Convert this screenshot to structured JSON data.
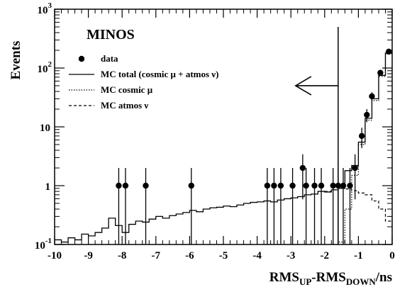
{
  "chart_data": {
    "type": "scatter",
    "experiment_label": "MINOS",
    "xlabel": {
      "main": "RMS",
      "sub1": "UP",
      "mid": "-RMS",
      "sub2": "DOWN",
      "tail": "/ns"
    },
    "ylabel": "Events",
    "xlim": [
      -10,
      0
    ],
    "ylim": [
      0.1,
      1000
    ],
    "yscale": "log",
    "x_ticks": [
      -10,
      -9,
      -8,
      -7,
      -6,
      -5,
      -4,
      -3,
      -2,
      -1,
      0
    ],
    "y_ticks": [
      {
        "value": 0.1,
        "base": "10",
        "exp": "-1"
      },
      {
        "value": 1,
        "base": "1",
        "exp": ""
      },
      {
        "value": 10,
        "base": "10",
        "exp": ""
      },
      {
        "value": 100,
        "base": "10",
        "exp": "2"
      },
      {
        "value": 1000,
        "base": "10",
        "exp": "3"
      }
    ],
    "grid": false,
    "legend_position": "top-left",
    "legend": [
      {
        "key": "data",
        "label": "data",
        "style": "marker"
      },
      {
        "key": "mc_total",
        "label": "MC total (cosmic μ + atmos ν)",
        "style": "solid"
      },
      {
        "key": "mc_cosmic",
        "label": "MC cosmic μ",
        "style": "dotted"
      },
      {
        "key": "mc_atmos",
        "label": "MC atmos ν",
        "style": "dashed"
      }
    ],
    "cut_line_x": -1.6,
    "cut_arrow": "left",
    "data_points": [
      {
        "x": -8.1,
        "y": 1
      },
      {
        "x": -7.9,
        "y": 1
      },
      {
        "x": -7.3,
        "y": 1
      },
      {
        "x": -5.95,
        "y": 1
      },
      {
        "x": -3.7,
        "y": 1
      },
      {
        "x": -3.5,
        "y": 1
      },
      {
        "x": -3.3,
        "y": 1
      },
      {
        "x": -2.95,
        "y": 1
      },
      {
        "x": -2.65,
        "y": 2
      },
      {
        "x": -2.55,
        "y": 1
      },
      {
        "x": -2.3,
        "y": 1
      },
      {
        "x": -2.1,
        "y": 1
      },
      {
        "x": -1.75,
        "y": 1
      },
      {
        "x": -1.6,
        "y": 1
      },
      {
        "x": -1.45,
        "y": 1
      },
      {
        "x": -1.25,
        "y": 1
      },
      {
        "x": -1.1,
        "y": 2
      },
      {
        "x": -0.75,
        "y": 16
      },
      {
        "x": -0.6,
        "y": 33
      },
      {
        "x": -0.9,
        "y": 7
      },
      {
        "x": -0.35,
        "y": 83
      },
      {
        "x": -0.1,
        "y": 190
      }
    ],
    "mc_total_edges": [
      -10,
      -9.8,
      -9.6,
      -9.4,
      -9.2,
      -9.0,
      -8.8,
      -8.6,
      -8.4,
      -8.2,
      -8.0,
      -7.8,
      -7.6,
      -7.4,
      -7.2,
      -7.0,
      -6.8,
      -6.6,
      -6.4,
      -6.2,
      -6.0,
      -5.8,
      -5.6,
      -5.4,
      -5.2,
      -5.0,
      -4.8,
      -4.6,
      -4.4,
      -4.2,
      -4.0,
      -3.8,
      -3.6,
      -3.4,
      -3.2,
      -3.0,
      -2.8,
      -2.6,
      -2.4,
      -2.2,
      -2.0,
      -1.8,
      -1.6,
      -1.4,
      -1.2,
      -1.0,
      -0.8,
      -0.6,
      -0.4,
      -0.2,
      0.0
    ],
    "mc_total_values": [
      0.12,
      0.11,
      0.13,
      0.12,
      0.15,
      0.14,
      0.16,
      0.19,
      0.28,
      0.21,
      0.16,
      0.22,
      0.25,
      0.24,
      0.27,
      0.3,
      0.28,
      0.31,
      0.33,
      0.35,
      0.38,
      0.36,
      0.4,
      0.42,
      0.43,
      0.45,
      0.44,
      0.47,
      0.5,
      0.52,
      0.53,
      0.55,
      0.53,
      0.57,
      0.6,
      0.62,
      0.65,
      0.7,
      0.72,
      0.8,
      0.78,
      0.85,
      0.9,
      1.8,
      2.2,
      5.5,
      14,
      30,
      75,
      180
    ],
    "mc_cosmic_edges": [
      -1.8,
      -1.6,
      -1.4,
      -1.2,
      -1.0,
      -0.8,
      -0.6,
      -0.4,
      -0.2,
      0.0
    ],
    "mc_cosmic_values": [
      0.1,
      0.11,
      0.4,
      1.5,
      5.0,
      13,
      28,
      72,
      175
    ],
    "mc_atmos_edges": [
      -2.0,
      -1.8,
      -1.6,
      -1.4,
      -1.2,
      -1.0,
      -0.8,
      -0.6,
      -0.4,
      -0.2,
      0.0
    ],
    "mc_atmos_values": [
      0.8,
      0.85,
      0.9,
      0.88,
      0.82,
      0.75,
      0.7,
      0.55,
      0.4,
      0.25
    ]
  }
}
